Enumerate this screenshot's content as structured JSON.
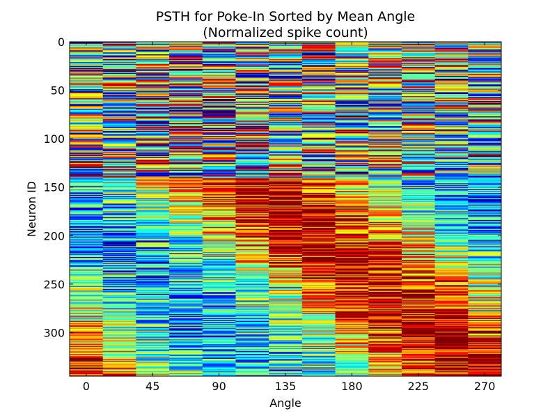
{
  "chart_data": {
    "type": "heatmap",
    "title": "PSTH for Poke-In Sorted by Mean Angle",
    "subtitle": "(Normalized spike count)",
    "xlabel": "Angle",
    "ylabel": "Neuron ID",
    "x_ticks": [
      0,
      45,
      90,
      135,
      180,
      225,
      270
    ],
    "y_ticks": [
      0,
      50,
      100,
      150,
      200,
      250,
      300
    ],
    "columns": [
      0,
      22.5,
      45,
      67.5,
      90,
      112.5,
      135,
      157.5,
      180,
      202.5,
      225,
      247.5,
      270
    ],
    "x_range": [
      -11.25,
      281.25
    ],
    "y_range": [
      0,
      345
    ],
    "n_rows": 345,
    "colormap": "jet",
    "value_range": [
      0,
      1
    ],
    "grid": false,
    "legend": "none"
  }
}
